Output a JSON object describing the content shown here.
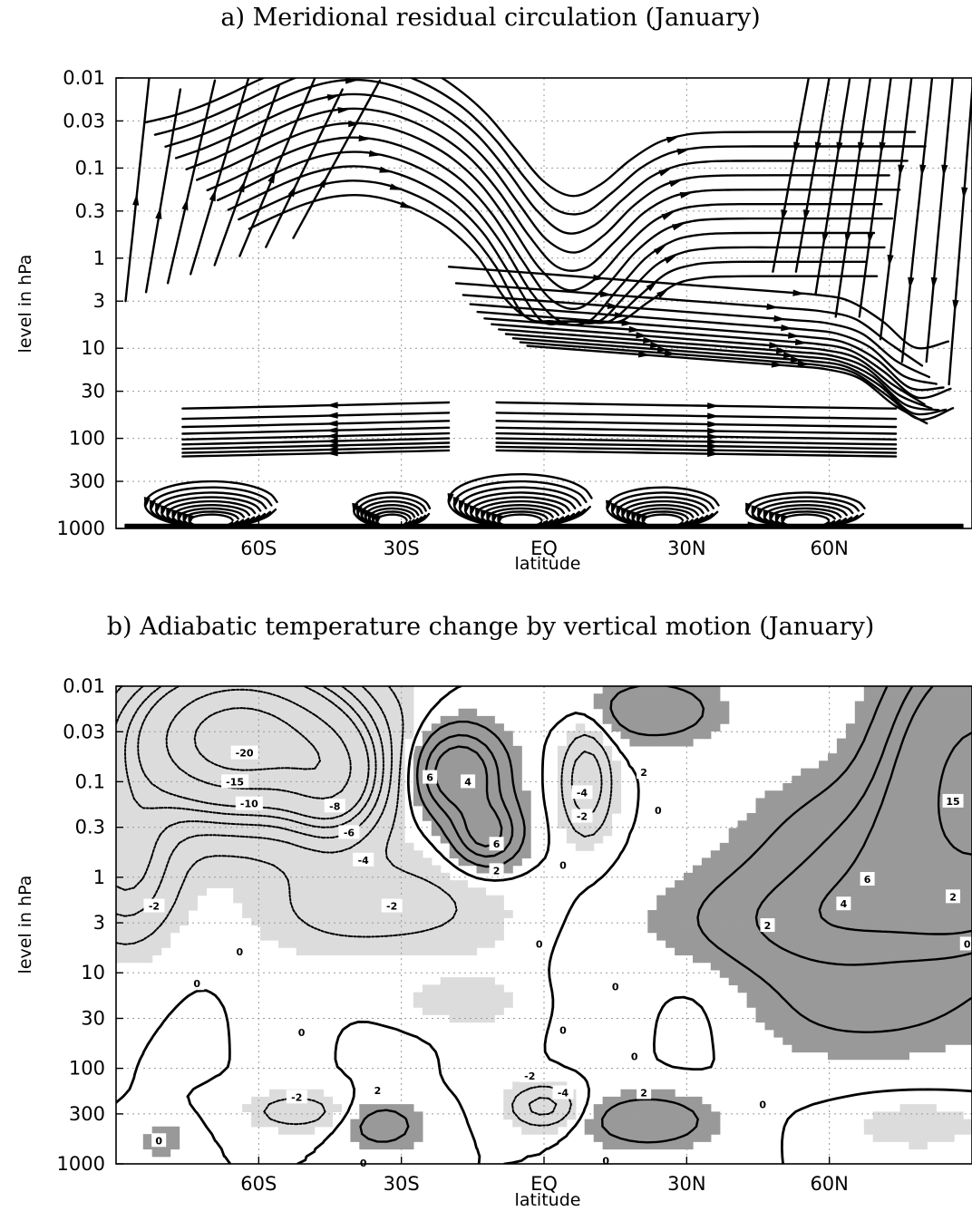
{
  "chart_data": [
    {
      "type": "streamline",
      "title": "a) Meridional residual circulation (January)",
      "xlabel": "latitude",
      "ylabel": "level in hPa",
      "xticks": [
        "60S",
        "30S",
        "EQ",
        "30N",
        "60N"
      ],
      "xtick_values": [
        -60,
        -30,
        0,
        30,
        60
      ],
      "yticks": [
        "0.01",
        "0.03",
        "0.1",
        "0.3",
        "1",
        "3",
        "10",
        "30",
        "100",
        "300",
        "1000"
      ],
      "ytick_values": [
        0.01,
        0.03,
        0.1,
        0.3,
        1,
        3,
        10,
        30,
        100,
        300,
        1000
      ],
      "xlim": [
        -90,
        90
      ],
      "ylim": [
        1000,
        0.01
      ],
      "yscale": "log",
      "grid": true
    },
    {
      "type": "contour",
      "title": "b) Adiabatic temperature change by vertical motion (January)",
      "xlabel": "latitude",
      "ylabel": "level in hPa",
      "xticks": [
        "60S",
        "30S",
        "EQ",
        "30N",
        "60N"
      ],
      "xtick_values": [
        -60,
        -30,
        0,
        30,
        60
      ],
      "yticks": [
        "0.01",
        "0.03",
        "0.1",
        "0.3",
        "1",
        "3",
        "10",
        "30",
        "100",
        "300",
        "1000"
      ],
      "ytick_values": [
        0.01,
        0.03,
        0.1,
        0.3,
        1,
        3,
        10,
        30,
        100,
        300,
        1000
      ],
      "xlim": [
        -90,
        90
      ],
      "ylim": [
        1000,
        0.01
      ],
      "yscale": "log",
      "grid": true,
      "shading": {
        "negative": "#dcdcdc",
        "positive": "#999999"
      },
      "contour_labels": [
        {
          "text": "-20",
          "lat": -63,
          "p": 0.05
        },
        {
          "text": "-15",
          "lat": -65,
          "p": 0.1
        },
        {
          "text": "-10",
          "lat": -62,
          "p": 0.17
        },
        {
          "text": "-8",
          "lat": -44,
          "p": 0.18
        },
        {
          "text": "-6",
          "lat": -41,
          "p": 0.34
        },
        {
          "text": "-4",
          "lat": -38,
          "p": 0.66
        },
        {
          "text": "-2",
          "lat": -82,
          "p": 2.0
        },
        {
          "text": "-2",
          "lat": -32,
          "p": 2.0
        },
        {
          "text": "0",
          "lat": -64,
          "p": 6.0
        },
        {
          "text": "0",
          "lat": -73,
          "p": 13.0
        },
        {
          "text": "0",
          "lat": -51,
          "p": 42.0
        },
        {
          "text": "-2",
          "lat": -52,
          "p": 200.0
        },
        {
          "text": "2",
          "lat": -35,
          "p": 170.0
        },
        {
          "text": "0",
          "lat": -81,
          "p": 570.0
        },
        {
          "text": "0",
          "lat": -38,
          "p": 980.0
        },
        {
          "text": "6",
          "lat": -24,
          "p": 0.09
        },
        {
          "text": "4",
          "lat": -16,
          "p": 0.1
        },
        {
          "text": "6",
          "lat": -10,
          "p": 0.45
        },
        {
          "text": "2",
          "lat": -10,
          "p": 0.85
        },
        {
          "text": "0",
          "lat": 4,
          "p": 0.75
        },
        {
          "text": "-4",
          "lat": 8,
          "p": 0.13
        },
        {
          "text": "-2",
          "lat": 8,
          "p": 0.23
        },
        {
          "text": "2",
          "lat": 21,
          "p": 0.08
        },
        {
          "text": "0",
          "lat": 24,
          "p": 0.2
        },
        {
          "text": "-2",
          "lat": -3,
          "p": 120.0
        },
        {
          "text": "-4",
          "lat": 4,
          "p": 180.0
        },
        {
          "text": "0",
          "lat": -1,
          "p": 5.0
        },
        {
          "text": "0",
          "lat": 15,
          "p": 14.0
        },
        {
          "text": "0",
          "lat": 4,
          "p": 40.0
        },
        {
          "text": "0",
          "lat": 19,
          "p": 75.0
        },
        {
          "text": "2",
          "lat": 21,
          "p": 180.0
        },
        {
          "text": "0",
          "lat": 46,
          "p": 240.0
        },
        {
          "text": "0",
          "lat": 13,
          "p": 930.0
        },
        {
          "text": "2",
          "lat": 47,
          "p": 3.2
        },
        {
          "text": "4",
          "lat": 63,
          "p": 1.9
        },
        {
          "text": "6",
          "lat": 68,
          "p": 1.05
        },
        {
          "text": "15",
          "lat": 86,
          "p": 0.16
        },
        {
          "text": "2",
          "lat": 86,
          "p": 1.6
        },
        {
          "text": "0",
          "lat": 89,
          "p": 5.0
        }
      ]
    }
  ]
}
